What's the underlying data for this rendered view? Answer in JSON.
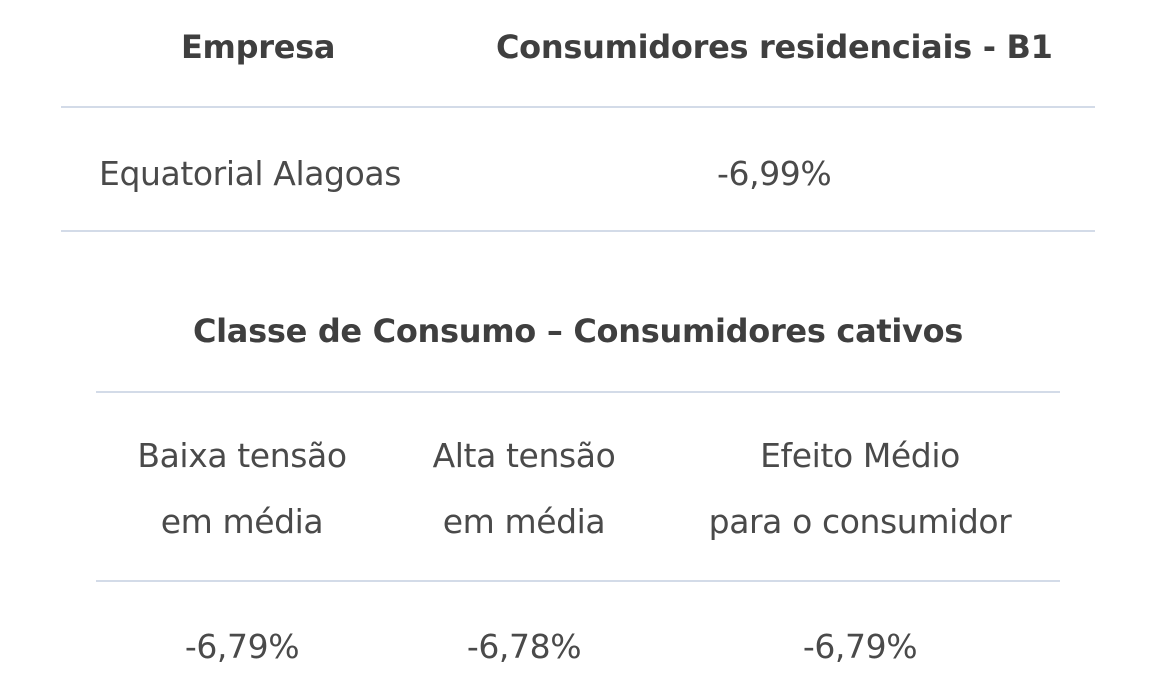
{
  "table1": {
    "headers": {
      "empresa": "Empresa",
      "consumidores": "Consumidores residenciais - B1"
    },
    "row": {
      "empresa": "Equatorial Alagoas",
      "valor": "-6,99%"
    }
  },
  "table2": {
    "title": "Classe de Consumo – Consumidores cativos",
    "columns": [
      {
        "line1": "Baixa tensão",
        "line2": "em média",
        "value": "-6,79%"
      },
      {
        "line1": "Alta tensão",
        "line2": "em média",
        "value": "-6,78%"
      },
      {
        "line1": "Efeito Médio",
        "line2": "para o consumidor",
        "value": "-6,79%"
      }
    ]
  }
}
